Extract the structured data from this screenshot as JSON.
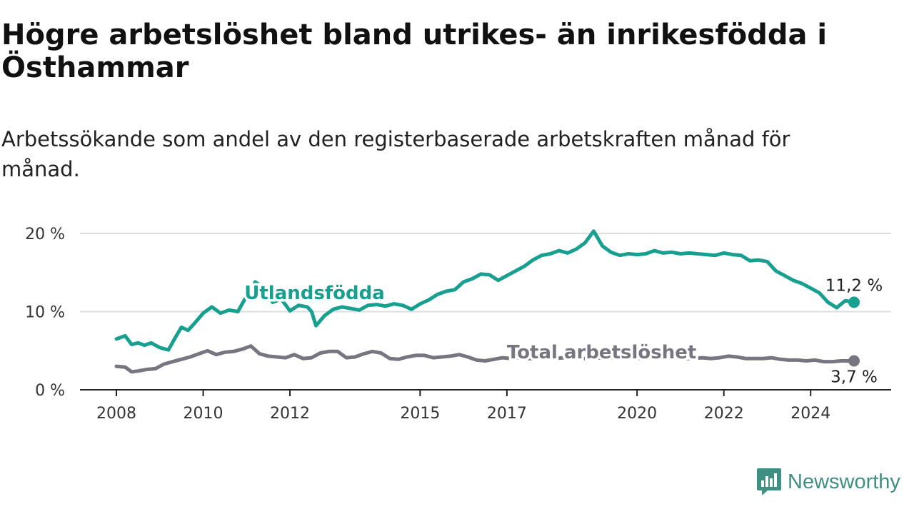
{
  "title": "Högre arbetslöshet bland utrikes- än inrikesfödda i Östhammar",
  "subtitle": "Arbetssökande som andel av den registerbaserade arbetskraften månad för månad.",
  "brand": {
    "name": "Newsworthy",
    "icon": "newsworthy-logo-icon"
  },
  "colors": {
    "foreign_born": "#17a090",
    "total": "#77757f",
    "grid": "#dddddd",
    "axis": "#222222"
  },
  "chart_data": {
    "type": "line",
    "x_ticks": [
      "2008",
      "2010",
      "2012",
      "2015",
      "2017",
      "2020",
      "2022",
      "2024"
    ],
    "y_ticks": [
      "0 %",
      "10 %",
      "20 %"
    ],
    "ylim": [
      0,
      20
    ],
    "grid": true,
    "series": [
      {
        "name": "Utlandsfödda",
        "end_label": "11,2 %",
        "x": [
          2008.0,
          2008.2,
          2008.35,
          2008.5,
          2008.65,
          2008.8,
          2009.0,
          2009.2,
          2009.35,
          2009.5,
          2009.65,
          2009.8,
          2010.0,
          2010.2,
          2010.4,
          2010.6,
          2010.8,
          2011.0,
          2011.2,
          2011.4,
          2011.6,
          2011.8,
          2012.0,
          2012.2,
          2012.4,
          2012.5,
          2012.6,
          2012.8,
          2013.0,
          2013.2,
          2013.4,
          2013.6,
          2013.8,
          2014.0,
          2014.2,
          2014.4,
          2014.6,
          2014.8,
          2015.0,
          2015.2,
          2015.4,
          2015.6,
          2015.8,
          2016.0,
          2016.2,
          2016.4,
          2016.6,
          2016.8,
          2017.0,
          2017.2,
          2017.4,
          2017.6,
          2017.8,
          2018.0,
          2018.2,
          2018.4,
          2018.6,
          2018.8,
          2019.0,
          2019.2,
          2019.4,
          2019.6,
          2019.8,
          2020.0,
          2020.2,
          2020.4,
          2020.6,
          2020.8,
          2021.0,
          2021.2,
          2021.4,
          2021.6,
          2021.8,
          2022.0,
          2022.2,
          2022.4,
          2022.6,
          2022.8,
          2023.0,
          2023.2,
          2023.4,
          2023.6,
          2023.8,
          2024.0,
          2024.2,
          2024.4,
          2024.6,
          2024.8,
          2025.0
        ],
        "y": [
          6.5,
          6.9,
          5.8,
          6.0,
          5.7,
          6.0,
          5.4,
          5.1,
          6.6,
          8.0,
          7.6,
          8.5,
          9.8,
          10.6,
          9.8,
          10.2,
          10.0,
          12.0,
          13.8,
          13.0,
          11.2,
          11.6,
          10.1,
          10.8,
          10.6,
          10.0,
          8.2,
          9.5,
          10.3,
          10.6,
          10.4,
          10.2,
          10.8,
          10.9,
          10.7,
          11.0,
          10.8,
          10.3,
          11.0,
          11.5,
          12.2,
          12.6,
          12.8,
          13.8,
          14.2,
          14.8,
          14.7,
          14.0,
          14.6,
          15.2,
          15.8,
          16.6,
          17.2,
          17.4,
          17.8,
          17.5,
          18.0,
          18.8,
          20.3,
          18.4,
          17.6,
          17.2,
          17.4,
          17.3,
          17.4,
          17.8,
          17.5,
          17.6,
          17.4,
          17.5,
          17.4,
          17.3,
          17.2,
          17.5,
          17.3,
          17.2,
          16.5,
          16.6,
          16.4,
          15.2,
          14.6,
          14.0,
          13.6,
          13.0,
          12.4,
          11.2,
          10.5,
          11.4,
          11.2
        ]
      },
      {
        "name": "Total arbetslöshet",
        "end_label": "3,7 %",
        "x": [
          2008.0,
          2008.2,
          2008.35,
          2008.5,
          2008.7,
          2008.9,
          2009.1,
          2009.3,
          2009.5,
          2009.7,
          2009.9,
          2010.1,
          2010.3,
          2010.5,
          2010.7,
          2010.9,
          2011.1,
          2011.3,
          2011.5,
          2011.7,
          2011.9,
          2012.1,
          2012.3,
          2012.5,
          2012.7,
          2012.9,
          2013.1,
          2013.3,
          2013.5,
          2013.7,
          2013.9,
          2014.1,
          2014.3,
          2014.5,
          2014.7,
          2014.9,
          2015.1,
          2015.3,
          2015.5,
          2015.7,
          2015.9,
          2016.1,
          2016.3,
          2016.5,
          2016.7,
          2016.9,
          2017.1,
          2017.3,
          2017.5,
          2017.7,
          2017.9,
          2018.1,
          2018.3,
          2018.5,
          2018.7,
          2018.9,
          2019.1,
          2019.3,
          2019.5,
          2019.7,
          2019.9,
          2020.1,
          2020.3,
          2020.5,
          2020.7,
          2020.9,
          2021.1,
          2021.3,
          2021.5,
          2021.7,
          2021.9,
          2022.1,
          2022.3,
          2022.5,
          2022.7,
          2022.9,
          2023.1,
          2023.3,
          2023.5,
          2023.7,
          2023.9,
          2024.1,
          2024.3,
          2024.5,
          2024.7,
          2025.0
        ],
        "y": [
          3.0,
          2.9,
          2.3,
          2.4,
          2.6,
          2.7,
          3.3,
          3.6,
          3.9,
          4.2,
          4.6,
          5.0,
          4.5,
          4.8,
          4.9,
          5.2,
          5.6,
          4.6,
          4.3,
          4.2,
          4.1,
          4.5,
          4.0,
          4.1,
          4.7,
          4.9,
          4.9,
          4.1,
          4.2,
          4.6,
          4.9,
          4.7,
          4.0,
          3.9,
          4.2,
          4.4,
          4.4,
          4.1,
          4.2,
          4.3,
          4.5,
          4.2,
          3.8,
          3.7,
          3.9,
          4.1,
          4.0,
          4.1,
          4.0,
          4.0,
          4.1,
          4.0,
          4.1,
          4.1,
          4.0,
          4.0,
          4.1,
          4.0,
          4.1,
          4.0,
          4.1,
          4.0,
          4.1,
          4.1,
          4.0,
          4.1,
          4.0,
          4.0,
          4.1,
          4.0,
          4.1,
          4.3,
          4.2,
          4.0,
          4.0,
          4.0,
          4.1,
          3.9,
          3.8,
          3.8,
          3.7,
          3.8,
          3.6,
          3.6,
          3.7,
          3.7
        ]
      }
    ]
  }
}
